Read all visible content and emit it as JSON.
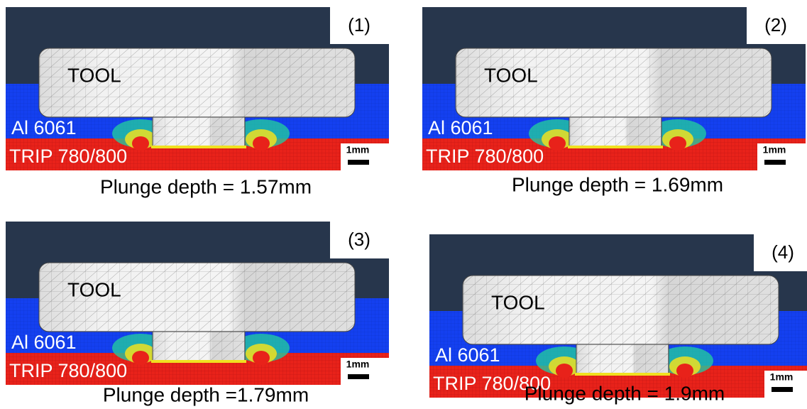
{
  "panels": [
    {
      "label": "(1)",
      "tool": "TOOL",
      "top_layer": "Al 6061",
      "bottom_layer": "TRIP 780/800",
      "scale": "1mm",
      "caption": "Plunge depth = 1.57mm"
    },
    {
      "label": "(2)",
      "tool": "TOOL",
      "top_layer": "Al 6061",
      "bottom_layer": "TRIP 780/800",
      "scale": "1mm",
      "caption": "Plunge depth = 1.69mm"
    },
    {
      "label": "(3)",
      "tool": "TOOL",
      "top_layer": "Al 6061",
      "bottom_layer": "TRIP 780/800",
      "scale": "1mm",
      "caption": "Plunge depth =1.79mm"
    },
    {
      "label": "(4)",
      "tool": "TOOL",
      "top_layer": "Al 6061",
      "bottom_layer": "TRIP 780/800",
      "scale": "1mm",
      "caption": "Plunge depth = 1.9mm"
    }
  ]
}
